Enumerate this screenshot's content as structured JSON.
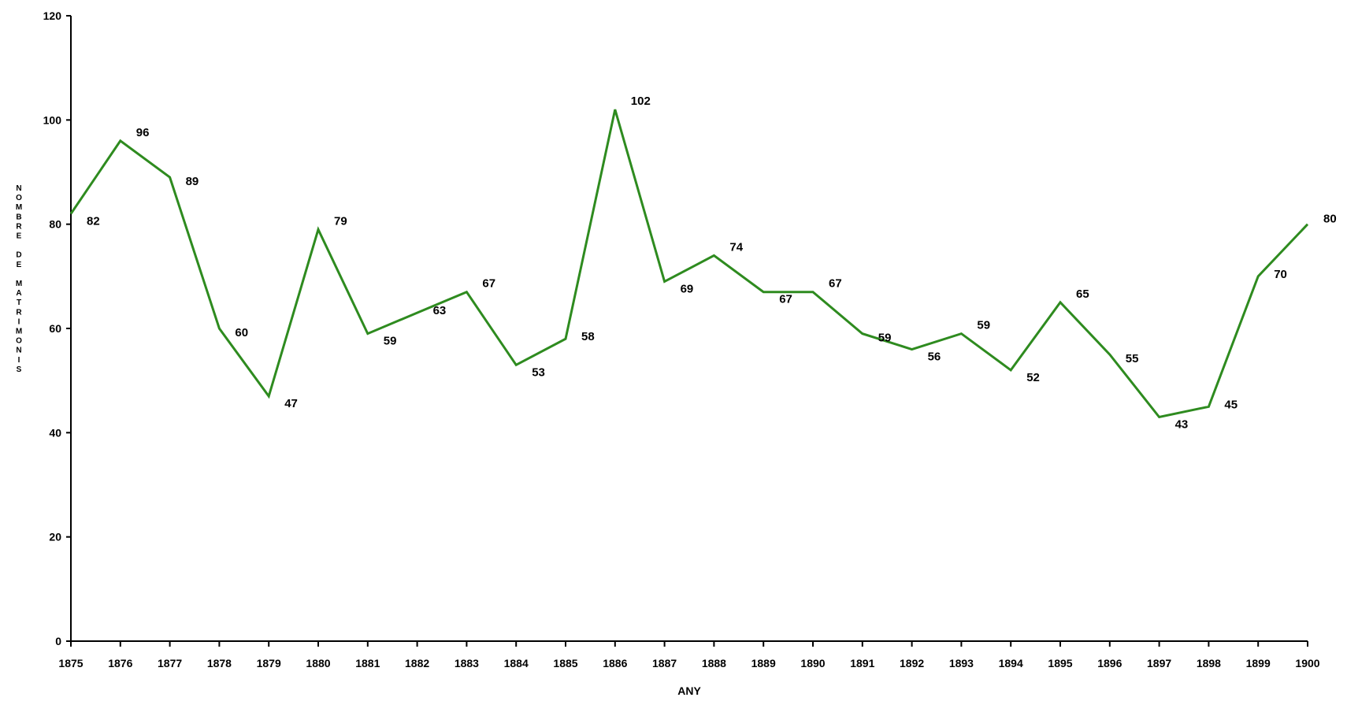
{
  "chart_data": {
    "type": "line",
    "title": "",
    "xlabel": "ANY",
    "ylabel": "NOMBRE DE MATRIMONIS",
    "ylim": [
      0,
      120
    ],
    "yticks": [
      0,
      20,
      40,
      60,
      80,
      100,
      120
    ],
    "grid": false,
    "legend": "none",
    "line_color": "#2e8b1f",
    "categories": [
      "1875",
      "1876",
      "1877",
      "1878",
      "1879",
      "1880",
      "1881",
      "1882",
      "1883",
      "1884",
      "1885",
      "1886",
      "1887",
      "1888",
      "1889",
      "1890",
      "1891",
      "1892",
      "1893",
      "1894",
      "1895",
      "1896",
      "1897",
      "1898",
      "1899",
      "1900"
    ],
    "series": [
      {
        "values": [
          82,
          96,
          89,
          60,
          47,
          79,
          59,
          63,
          67,
          53,
          58,
          102,
          69,
          74,
          67,
          67,
          59,
          56,
          59,
          52,
          65,
          55,
          43,
          45,
          70,
          80
        ]
      }
    ]
  }
}
